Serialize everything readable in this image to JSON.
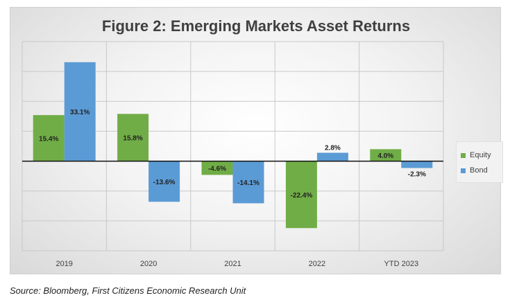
{
  "chart_data": {
    "type": "bar",
    "title": "Figure 2: Emerging Markets Asset Returns",
    "categories": [
      "2019",
      "2020",
      "2021",
      "2022",
      "YTD 2023"
    ],
    "series": [
      {
        "name": "Equity",
        "color": "#70ad47",
        "values": [
          15.4,
          15.8,
          -4.6,
          -22.4,
          4.0
        ],
        "labels": [
          "15.4%",
          "15.8%",
          "-4.6%",
          "-22.4%",
          "4.0%"
        ]
      },
      {
        "name": "Bond",
        "color": "#5b9bd5",
        "values": [
          33.1,
          -13.6,
          -14.1,
          2.8,
          -2.3
        ],
        "labels": [
          "33.1%",
          "-13.6%",
          "-14.1%",
          "2.8%",
          "-2.3%"
        ]
      }
    ],
    "ylim": [
      -30,
      40
    ],
    "grid": true,
    "legend": "right"
  },
  "source": "Source: Bloomberg, First Citizens Economic Research Unit"
}
